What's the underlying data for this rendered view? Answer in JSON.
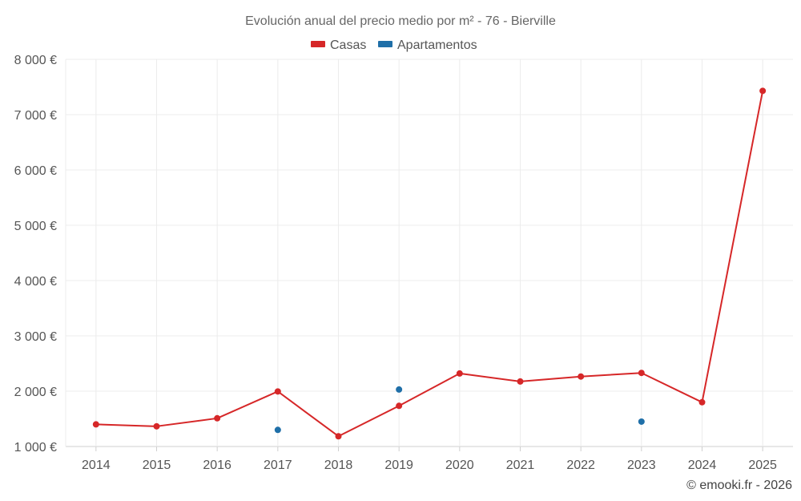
{
  "chart_data": {
    "type": "line",
    "title": "Evolución anual del precio medio por m² - 76 - Bierville",
    "categories": [
      "2014",
      "2015",
      "2016",
      "2017",
      "2018",
      "2019",
      "2020",
      "2021",
      "2022",
      "2023",
      "2024",
      "2025"
    ],
    "y_ticks": [
      "1 000 €",
      "2 000 €",
      "3 000 €",
      "4 000 €",
      "5 000 €",
      "6 000 €",
      "7 000 €",
      "8 000 €"
    ],
    "ylim": [
      1000,
      8000
    ],
    "grid": true,
    "legend_position": "top-center",
    "series": [
      {
        "name": "Casas",
        "color": "#d62728",
        "mode": "line+markers",
        "values": [
          1400,
          1365,
          1510,
          1995,
          1185,
          1735,
          2320,
          2175,
          2265,
          2330,
          1800,
          7430
        ]
      },
      {
        "name": "Apartamentos",
        "color": "#1f6fa8",
        "mode": "markers",
        "values": [
          null,
          null,
          null,
          1300,
          null,
          2030,
          null,
          null,
          null,
          1450,
          null,
          null
        ]
      }
    ]
  },
  "credit": "© emooki.fr - 2026"
}
